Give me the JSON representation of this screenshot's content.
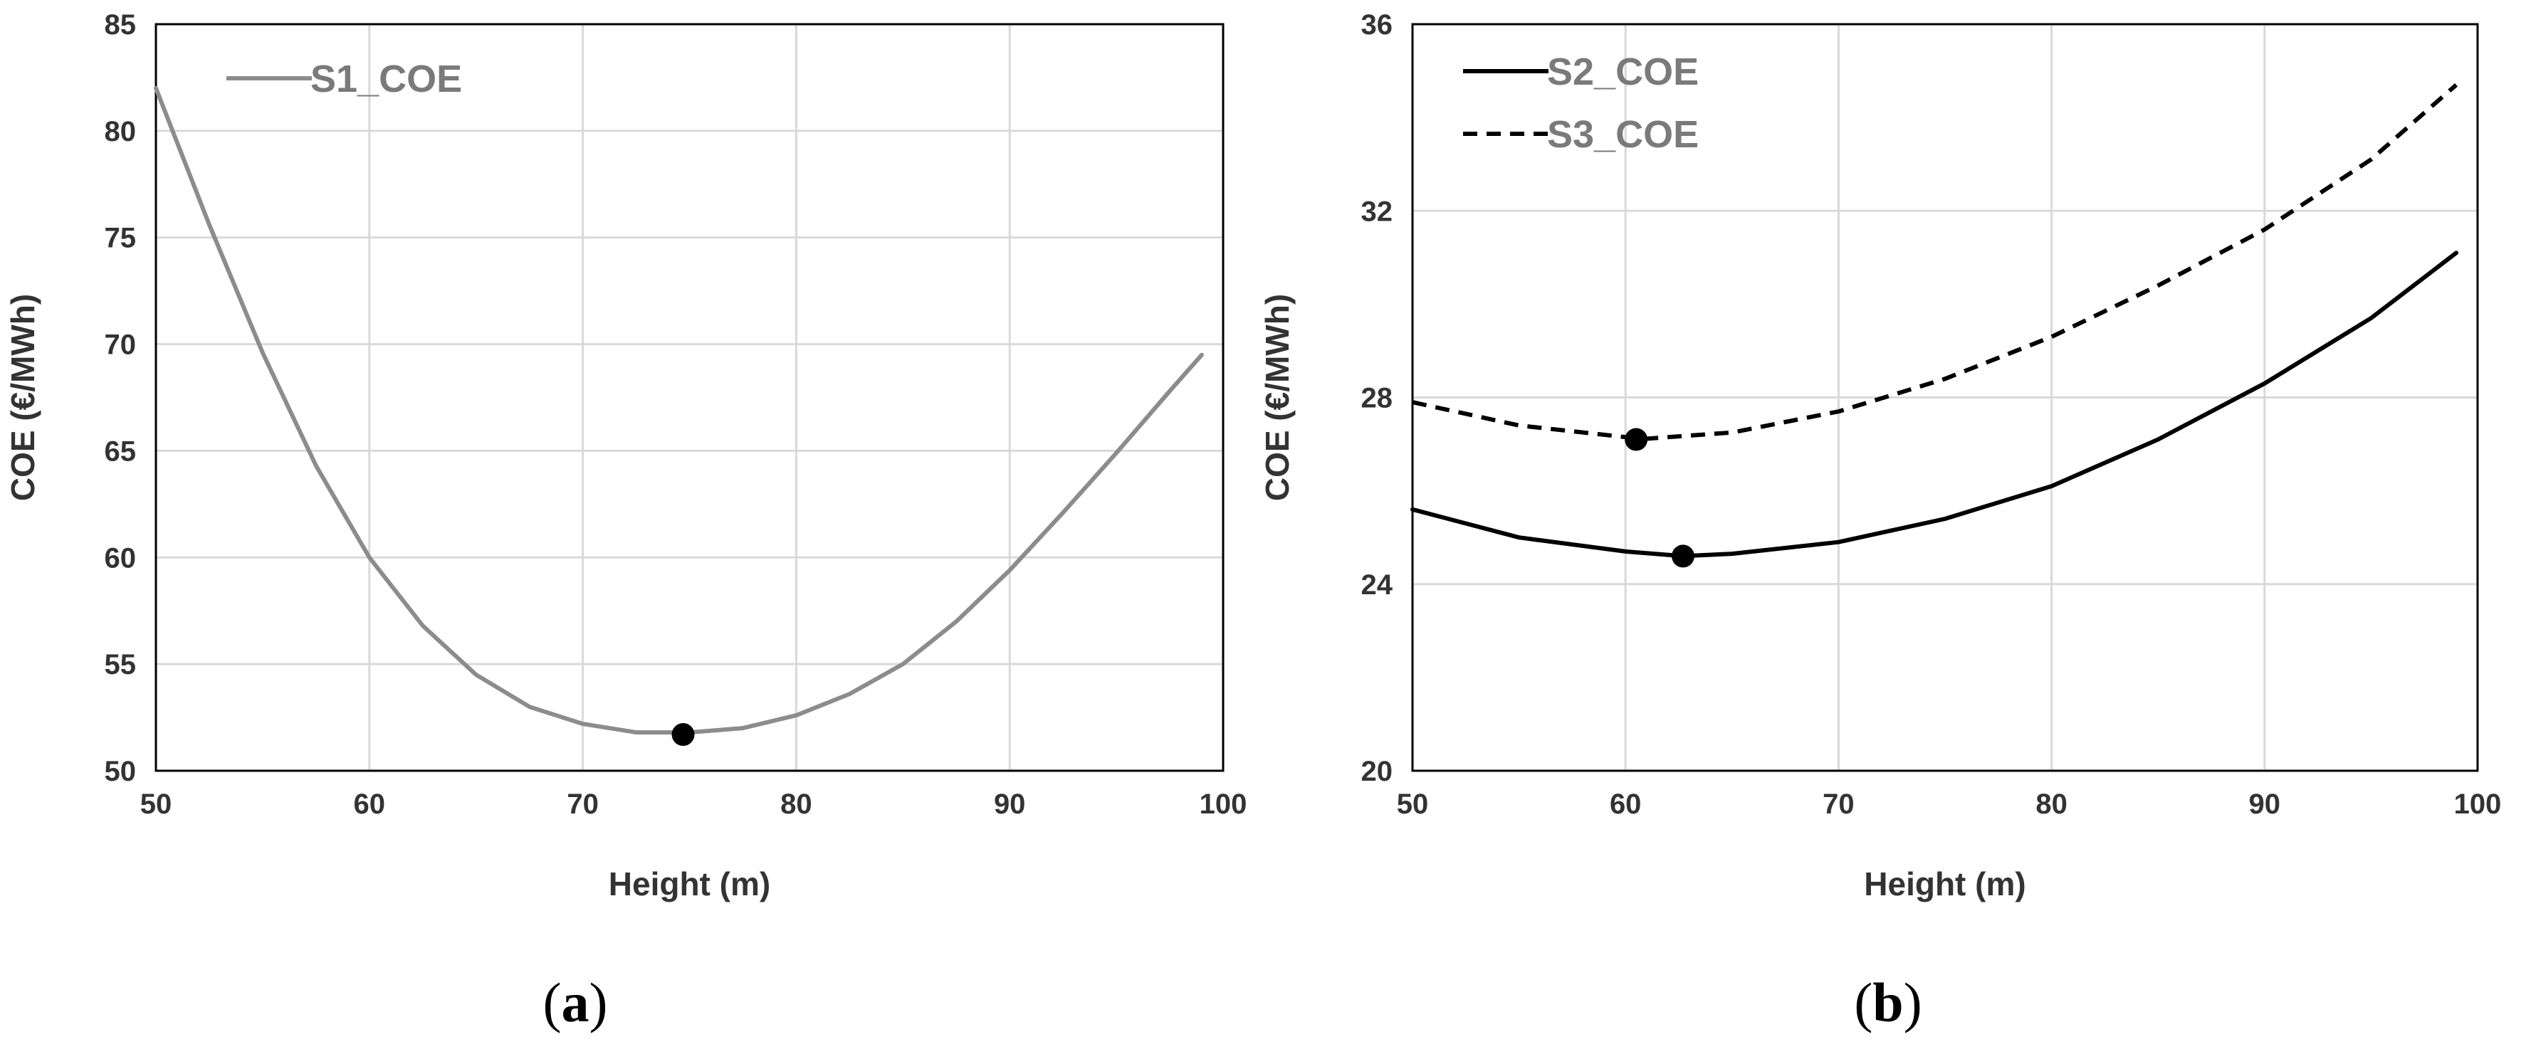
{
  "chart_data": [
    {
      "type": "line",
      "panel_label": "a",
      "title": "",
      "xlabel": "Height (m)",
      "ylabel": "COE (€/MWh)",
      "xlim": [
        50,
        100
      ],
      "ylim": [
        50,
        85
      ],
      "xticks": [
        50,
        60,
        70,
        80,
        90,
        100
      ],
      "yticks": [
        50,
        55,
        60,
        65,
        70,
        75,
        80,
        85
      ],
      "grid": true,
      "legend_position": "top-left",
      "series": [
        {
          "name": "S1_COE",
          "color": "#8c8c8c",
          "dash": "solid",
          "x": [
            50,
            52.5,
            55,
            57.5,
            60,
            62.5,
            65,
            67.5,
            70,
            72.5,
            75,
            77.5,
            80,
            82.5,
            85,
            87.5,
            90,
            92.5,
            95,
            97.5,
            99
          ],
          "values": [
            82.0,
            75.6,
            69.6,
            64.3,
            60.0,
            56.8,
            54.5,
            53.0,
            52.2,
            51.8,
            51.8,
            52.0,
            52.6,
            53.6,
            55.0,
            57.0,
            59.4,
            62.1,
            64.9,
            67.8,
            69.5
          ],
          "minimum": {
            "x": 74.7,
            "y": 51.7
          }
        }
      ]
    },
    {
      "type": "line",
      "panel_label": "b",
      "title": "",
      "xlabel": "Height (m)",
      "ylabel": "COE (€/MWh)",
      "xlim": [
        50,
        100
      ],
      "ylim": [
        20,
        36
      ],
      "xticks": [
        50,
        60,
        70,
        80,
        90,
        100
      ],
      "yticks": [
        20,
        24,
        28,
        32,
        36
      ],
      "grid": true,
      "legend_position": "top-left",
      "series": [
        {
          "name": "S2_COE",
          "color": "#000000",
          "dash": "solid",
          "x": [
            50,
            55,
            60,
            62.7,
            65,
            70,
            75,
            80,
            85,
            90,
            95,
            99
          ],
          "values": [
            25.6,
            25.0,
            24.7,
            24.6,
            24.65,
            24.9,
            25.4,
            26.1,
            27.1,
            28.3,
            29.7,
            31.1
          ],
          "minimum": {
            "x": 62.7,
            "y": 24.6
          }
        },
        {
          "name": "S3_COE",
          "color": "#000000",
          "dash": "dashed",
          "x": [
            50,
            55,
            60,
            60.5,
            65,
            70,
            75,
            80,
            85,
            90,
            95,
            99
          ],
          "values": [
            27.9,
            27.4,
            27.15,
            27.1,
            27.25,
            27.7,
            28.4,
            29.3,
            30.4,
            31.6,
            33.1,
            34.7
          ],
          "minimum": {
            "x": 60.5,
            "y": 27.1
          }
        }
      ]
    }
  ]
}
